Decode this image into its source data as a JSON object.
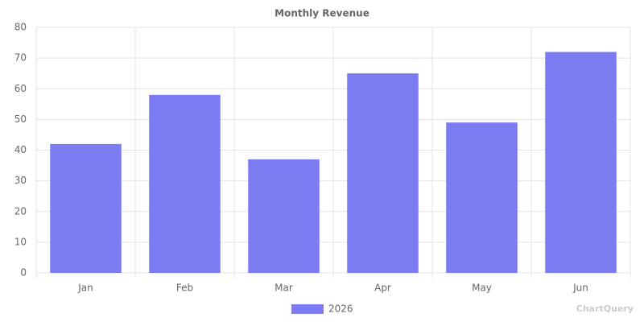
{
  "chart_data": {
    "type": "bar",
    "title": "Monthly Revenue",
    "categories": [
      "Jan",
      "Feb",
      "Mar",
      "Apr",
      "May",
      "Jun"
    ],
    "series": [
      {
        "name": "2026",
        "color": "#7b7cf2",
        "values": [
          42,
          58,
          37,
          65,
          49,
          72
        ]
      }
    ],
    "ylim": [
      0,
      80
    ],
    "yticks": [
      0,
      10,
      20,
      30,
      40,
      50,
      60,
      70,
      80
    ],
    "grid": true,
    "legend": "bottom",
    "watermark": "ChartQuery"
  }
}
